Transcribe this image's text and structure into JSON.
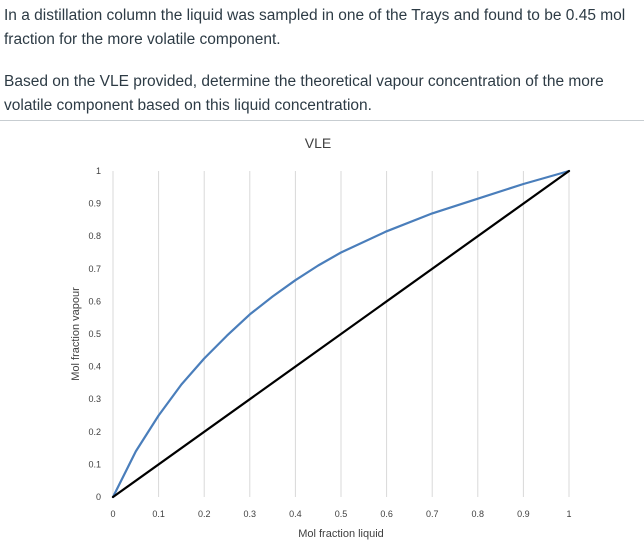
{
  "question": {
    "paragraph1": "In a distillation column the liquid was sampled in one of the Trays and found to be 0.45 mol fraction for the more volatile component.",
    "paragraph2": "Based on the VLE provided, determine the theoretical vapour concentration of the more volatile component based on this liquid concentration."
  },
  "chart_data": {
    "type": "line",
    "title": "VLE",
    "xlabel": "Mol fraction liquid",
    "ylabel": "Mol fraction vapour",
    "xlim": [
      0,
      1
    ],
    "ylim": [
      0,
      1
    ],
    "x_ticks": [
      "0",
      "0.1",
      "0.2",
      "0.3",
      "0.4",
      "0.5",
      "0.6",
      "0.7",
      "0.8",
      "0.9",
      "1"
    ],
    "y_ticks": [
      "0",
      "0.1",
      "0.2",
      "0.3",
      "0.4",
      "0.5",
      "0.6",
      "0.7",
      "0.8",
      "0.9",
      "1"
    ],
    "grid": "vertical",
    "legend": "none",
    "series": [
      {
        "color": "#4a7ebb",
        "x": [
          0,
          0.05,
          0.1,
          0.15,
          0.2,
          0.25,
          0.3,
          0.35,
          0.4,
          0.45,
          0.5,
          0.6,
          0.7,
          0.8,
          0.9,
          1
        ],
        "y": [
          0,
          0.14,
          0.25,
          0.345,
          0.425,
          0.495,
          0.56,
          0.615,
          0.665,
          0.71,
          0.75,
          0.815,
          0.87,
          0.915,
          0.96,
          1
        ]
      },
      {
        "color": "#000000",
        "x": [
          0,
          1
        ],
        "y": [
          0,
          1
        ]
      }
    ]
  }
}
